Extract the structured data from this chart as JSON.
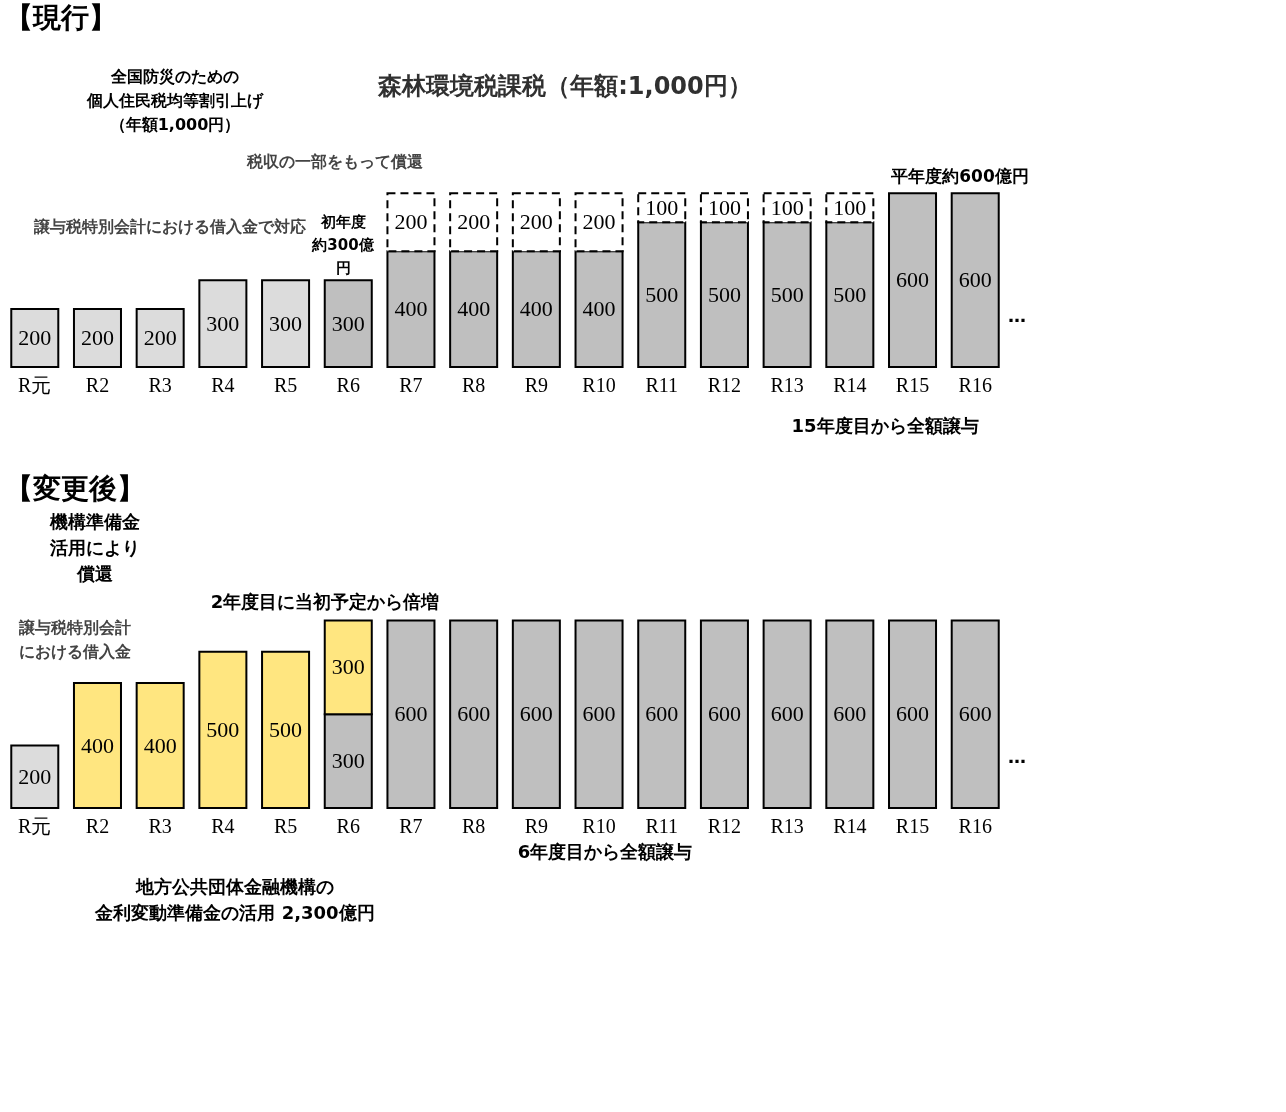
{
  "chart_data": [
    {
      "type": "bar",
      "title": "【現行】",
      "stacked": true,
      "data_labels": true,
      "tick_labels": "x",
      "grid": false,
      "categories": [
        "R元",
        "R2",
        "R3",
        "R4",
        "R5",
        "R6",
        "R7",
        "R8",
        "R9",
        "R10",
        "R11",
        "R12",
        "R13",
        "R14",
        "R15",
        "R16"
      ],
      "series": [
        {
          "color": "#dcdcdc",
          "values": [
            200,
            200,
            200,
            300,
            300,
            null,
            null,
            null,
            null,
            null,
            null,
            null,
            null,
            null,
            null,
            null
          ]
        },
        {
          "color": "#bfbfbf",
          "values": [
            null,
            null,
            null,
            null,
            null,
            300,
            400,
            400,
            400,
            400,
            500,
            500,
            500,
            500,
            600,
            600
          ]
        },
        {
          "color": "#ffffff",
          "line_style": "dashed",
          "values": [
            null,
            null,
            null,
            null,
            null,
            null,
            200,
            200,
            200,
            200,
            100,
            100,
            100,
            100,
            null,
            null
          ]
        }
      ],
      "annotations": [
        "全国防災のための個人住民税均等割引上げ（年額1,000円）",
        "森林環境税課税（年額:1,000円）",
        "税収の一部をもって償還",
        "譲与税特別会計における借入金で対応",
        "初年度約300億円",
        "平年度約600億円",
        "15年度目から全額譲与",
        "…"
      ]
    },
    {
      "type": "bar",
      "title": "【変更後】",
      "stacked": true,
      "data_labels": true,
      "tick_labels": "x",
      "grid": false,
      "categories": [
        "R元",
        "R2",
        "R3",
        "R4",
        "R5",
        "R6",
        "R7",
        "R8",
        "R9",
        "R10",
        "R11",
        "R12",
        "R13",
        "R14",
        "R15",
        "R16"
      ],
      "series": [
        {
          "color": "#dcdcdc",
          "values": [
            200,
            null,
            null,
            null,
            null,
            null,
            null,
            null,
            null,
            null,
            null,
            null,
            null,
            null,
            null,
            null
          ]
        },
        {
          "color": "#bfbfbf",
          "values": [
            null,
            null,
            null,
            null,
            null,
            300,
            600,
            600,
            600,
            600,
            600,
            600,
            600,
            600,
            600,
            600
          ]
        },
        {
          "color": "#ffe680",
          "values": [
            null,
            400,
            400,
            500,
            500,
            300,
            null,
            null,
            null,
            null,
            null,
            null,
            null,
            null,
            null,
            null
          ]
        }
      ],
      "annotations": [
        "機構準備金活用により償還",
        "2年度目に当初予定から倍増",
        "譲与税特別会計における借入金",
        "6年度目から全額譲与",
        "地方公共団体金融機構の金利変動準備金の活用 2,300億円",
        "…"
      ]
    }
  ]
}
